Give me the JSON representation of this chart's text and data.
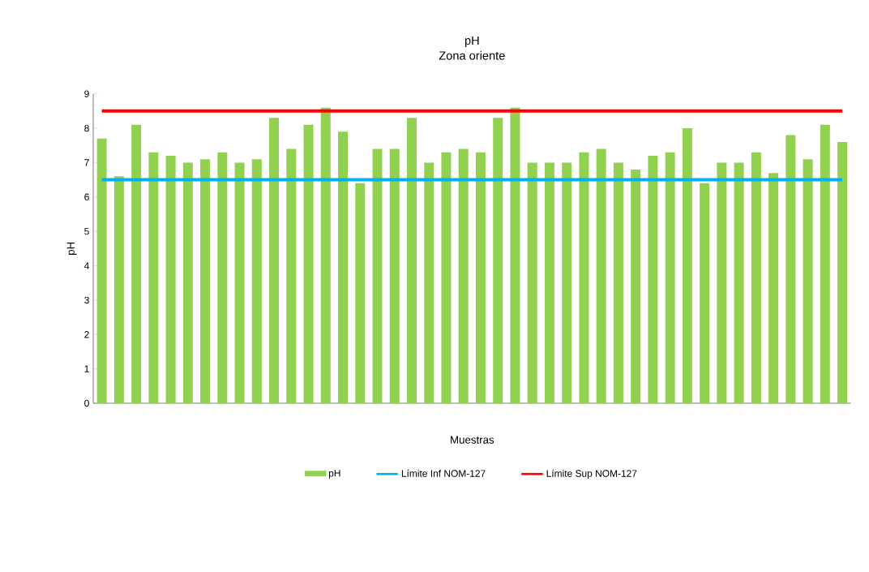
{
  "chart_data": {
    "type": "bar",
    "title": "pH",
    "subtitle": "Zona oriente",
    "xlabel": "Muestras",
    "ylabel": "pH",
    "categories": [
      null,
      null,
      null,
      null,
      null,
      null,
      null,
      null,
      null,
      null,
      null,
      null,
      null,
      null,
      null,
      null,
      null,
      null,
      null,
      null,
      null,
      null,
      null,
      null,
      null,
      null,
      null,
      null,
      null,
      null,
      null,
      null,
      null,
      null,
      null,
      null,
      null,
      null,
      null,
      null,
      null,
      null,
      null,
      null
    ],
    "series": [
      {
        "name": "pH",
        "color": "#92d050",
        "values": [
          7.7,
          6.6,
          8.1,
          7.3,
          7.2,
          7.0,
          7.1,
          7.3,
          7.0,
          7.1,
          8.3,
          7.4,
          8.1,
          8.6,
          7.9,
          6.4,
          7.4,
          7.4,
          8.3,
          7.0,
          7.3,
          7.4,
          7.3,
          8.3,
          8.6,
          7.0,
          7.0,
          7.0,
          7.3,
          7.4,
          7.0,
          6.8,
          7.2,
          7.3,
          8.0,
          6.4,
          7.0,
          7.0,
          7.3,
          6.7,
          7.8,
          7.1,
          8.1,
          7.6
        ]
      }
    ],
    "ref_lines": [
      {
        "axis": "y",
        "value": 6.5,
        "label": "Límite Inf NOM-127",
        "color": "#00b0f0"
      },
      {
        "axis": "y",
        "value": 8.5,
        "label": "Límite Sup NOM-127",
        "color": "#ff0000"
      }
    ],
    "ylim": [
      0,
      9
    ],
    "yticks": [
      0,
      1,
      2,
      3,
      4,
      5,
      6,
      7,
      8,
      9
    ],
    "legend": "bottom"
  }
}
